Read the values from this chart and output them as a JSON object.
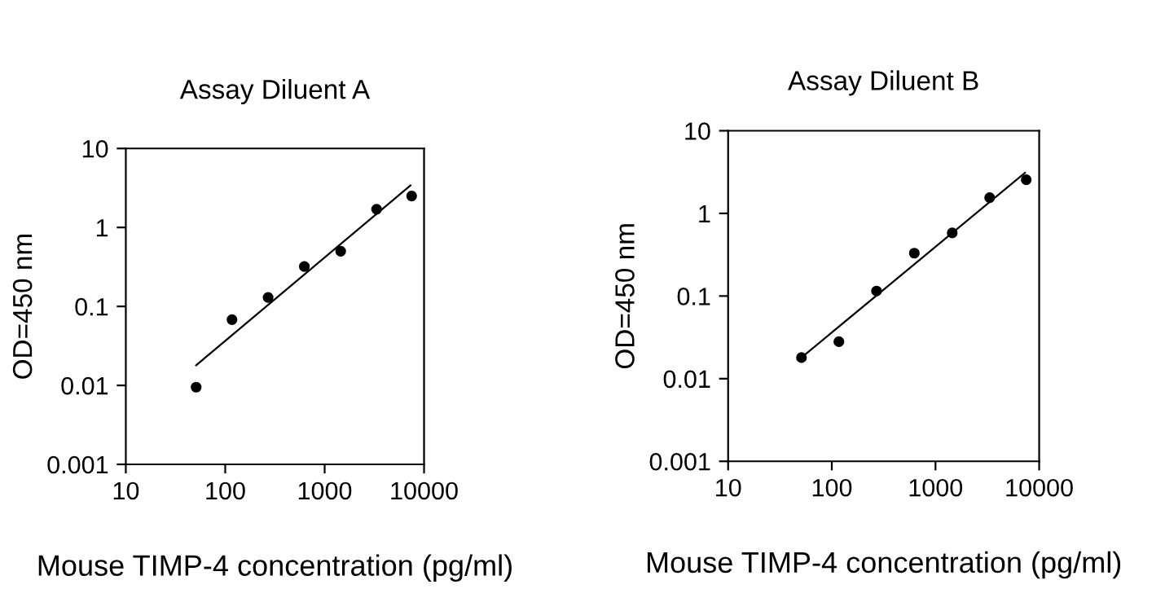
{
  "chart_data": [
    {
      "type": "scatter",
      "title": "Assay Diluent A",
      "xlabel": "Mouse TIMP-4 concentration (pg/ml)",
      "ylabel": "OD=450 nm",
      "log": "xy",
      "xlim": [
        10,
        10000
      ],
      "ylim": [
        0.001,
        10
      ],
      "xticks": [
        10,
        100,
        1000,
        10000
      ],
      "yticks": [
        0.001,
        0.01,
        0.1,
        1,
        10
      ],
      "grid": false,
      "legend": false,
      "series": [
        {
          "marker": "circle",
          "color": "#000000",
          "x": [
            51,
            117,
            270,
            625,
            1450,
            3330,
            7500
          ],
          "values": [
            0.0095,
            0.068,
            0.13,
            0.32,
            0.5,
            1.7,
            2.5
          ]
        },
        {
          "type": "line",
          "color": "#000000",
          "x": [
            51,
            7300
          ],
          "values": [
            0.018,
            3.4
          ]
        }
      ]
    },
    {
      "type": "scatter",
      "title": "Assay Diluent B",
      "xlabel": "Mouse TIMP-4 concentration (pg/ml)",
      "ylabel": "OD=450 nm",
      "log": "xy",
      "xlim": [
        10,
        10000
      ],
      "ylim": [
        0.001,
        10
      ],
      "xticks": [
        10,
        100,
        1000,
        10000
      ],
      "yticks": [
        0.001,
        0.01,
        0.1,
        1,
        10
      ],
      "grid": false,
      "legend": false,
      "series": [
        {
          "marker": "circle",
          "color": "#000000",
          "x": [
            51,
            117,
            270,
            625,
            1450,
            3330,
            7500
          ],
          "values": [
            0.018,
            0.028,
            0.115,
            0.33,
            0.58,
            1.55,
            2.55
          ]
        },
        {
          "type": "line",
          "color": "#000000",
          "x": [
            51,
            7300
          ],
          "values": [
            0.018,
            3.1
          ]
        }
      ]
    }
  ]
}
